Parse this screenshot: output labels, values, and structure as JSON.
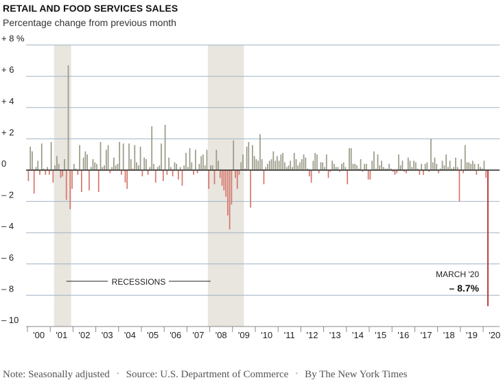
{
  "header": {
    "title": "RETAIL AND FOOD SERVICES SALES",
    "subtitle": "Percentage change from previous month"
  },
  "footer": {
    "note": "Note: Seasonally adjusted",
    "source": "Source: U.S. Department of Commerce",
    "credit": "By The New York Times",
    "separator": "•"
  },
  "colors": {
    "positive_bar": "#9a9a88",
    "negative_bar": "#d6776c",
    "highlight_bar": "#b21f27",
    "recession_band": "#e8e6df",
    "gridline": "#9fb2c4",
    "zero_line": "#222222"
  },
  "chart_data": {
    "type": "bar",
    "title": "RETAIL AND FOOD SERVICES SALES",
    "subtitle": "Percentage change from previous month",
    "x_tick_labels": [
      "'00",
      "'01",
      "'02",
      "'03",
      "'04",
      "'05",
      "'06",
      "'07",
      "'08",
      "'09",
      "'10",
      "'11",
      "'12",
      "'13",
      "'14",
      "'15",
      "'16",
      "'17",
      "'18",
      "'19",
      "'20"
    ],
    "y_tick_labels": [
      {
        "value": 8,
        "label": "+ 8 %"
      },
      {
        "value": 6,
        "label": "+ 6"
      },
      {
        "value": 4,
        "label": "+ 4"
      },
      {
        "value": 2,
        "label": "+ 2"
      },
      {
        "value": 0,
        "label": "0"
      },
      {
        "value": -2,
        "label": "– 2"
      },
      {
        "value": -4,
        "label": "– 4"
      },
      {
        "value": -6,
        "label": "– 6"
      },
      {
        "value": -8,
        "label": "– 8"
      },
      {
        "value": -10,
        "label": "– 10"
      }
    ],
    "ylim": [
      -10,
      8
    ],
    "grid": true,
    "start": "2000-01",
    "end": "2020-03",
    "frequency": "monthly",
    "recessions": [
      {
        "start": "2001-03",
        "end": "2001-11"
      },
      {
        "start": "2007-12",
        "end": "2009-06"
      }
    ],
    "recession_label": "RECESSIONS",
    "annotation": {
      "date": "2020-03",
      "label": "MARCH '20",
      "value_label": "– 8.7%"
    },
    "values_by_year": {
      "2000": [
        -0.7,
        1.5,
        1.2,
        -1.5,
        0.2,
        0.6,
        -0.3,
        1.7,
        0.1,
        -0.3,
        0.2,
        -0.3
      ],
      "2001": [
        1.8,
        -0.8,
        0.3,
        0.9,
        0.4,
        -0.5,
        -0.4,
        0.7,
        -1.9,
        6.7,
        -2.5,
        -1.2
      ],
      "2002": [
        0.4,
        0.1,
        -0.3,
        1.6,
        -1.4,
        0.8,
        1.2,
        1.0,
        -1.3,
        0.2,
        0.7,
        0.5
      ],
      "2003": [
        0.4,
        -1.4,
        1.8,
        0.2,
        0.3,
        1.3,
        1.6,
        -0.2,
        0.2,
        0.8,
        0.3,
        0.4
      ],
      "2004": [
        1.8,
        -0.3,
        1.7,
        -0.8,
        -1.2,
        1.7,
        0.7,
        0.1,
        1.6,
        0.5,
        0.3,
        1.5
      ],
      "2005": [
        -0.4,
        0.8,
        0.7,
        -0.3,
        0.2,
        2.8,
        0.4,
        -0.8,
        0.2,
        0.3,
        1.7,
        -0.7
      ],
      "2006": [
        2.9,
        -0.3,
        0.8,
        0.2,
        -0.4,
        0.5,
        0.4,
        -0.6,
        0.2,
        -1.0,
        0.3,
        1.1
      ],
      "2007": [
        0.2,
        1.4,
        0.5,
        -0.3,
        1.3,
        -0.2,
        0.4,
        0.9,
        1.0,
        0.3,
        1.3,
        -1.2
      ],
      "2008": [
        0.3,
        0.3,
        -0.9,
        1.3,
        0.6,
        -0.5,
        -1.0,
        -1.3,
        -1.7,
        -2.9,
        -3.8,
        -2.2
      ],
      "2009": [
        1.9,
        -0.5,
        -1.2,
        -0.3,
        0.5,
        1.0,
        0.1,
        1.5,
        1.8,
        -2.4,
        1.6,
        0.9
      ],
      "2010": [
        0.7,
        0.6,
        2.3,
        0.7,
        -0.9,
        0.2,
        0.4,
        0.6,
        0.7,
        1.2,
        0.6,
        0.9
      ],
      "2011": [
        0.6,
        1.0,
        1.1,
        0.5,
        0.2,
        0.3,
        0.6,
        0.2,
        1.1,
        0.7,
        0.3,
        0.5
      ],
      "2012": [
        0.7,
        1.0,
        0.8,
        0.1,
        -0.4,
        -0.8,
        0.6,
        1.1,
        1.0,
        -0.2,
        0.5,
        0.5
      ],
      "2013": [
        0.2,
        1.0,
        -0.5,
        -0.1,
        0.6,
        0.4,
        0.2,
        0.2,
        -0.1,
        0.4,
        0.5,
        0.2
      ],
      "2014": [
        -0.9,
        1.4,
        1.4,
        0.4,
        0.4,
        0.3,
        0.1,
        0.7,
        -0.1,
        0.4,
        0.4,
        -0.6
      ],
      "2015": [
        -0.6,
        0.6,
        1.2,
        0.1,
        1.0,
        0.3,
        0.6,
        0.2,
        0.1,
        0.1,
        0.4,
        0.1
      ],
      "2016": [
        -0.1,
        -0.3,
        -0.2,
        1.0,
        0.3,
        0.6,
        -0.1,
        -0.2,
        0.8,
        0.6,
        0.2,
        0.6
      ],
      "2017": [
        0.5,
        0.1,
        -0.3,
        0.4,
        -0.3,
        0.4,
        0.5,
        -0.1,
        2.0,
        0.5,
        0.8,
        0.4
      ],
      "2018": [
        -0.2,
        0.1,
        0.6,
        0.3,
        1.0,
        0.2,
        0.6,
        0.1,
        0.2,
        0.8,
        0.2,
        -2.0
      ],
      "2019": [
        0.7,
        -0.2,
        1.6,
        0.5,
        0.5,
        0.4,
        0.6,
        0.4,
        -0.3,
        0.4,
        0.2,
        0.1
      ],
      "2020": [
        0.6,
        -0.5,
        -8.7
      ]
    }
  }
}
